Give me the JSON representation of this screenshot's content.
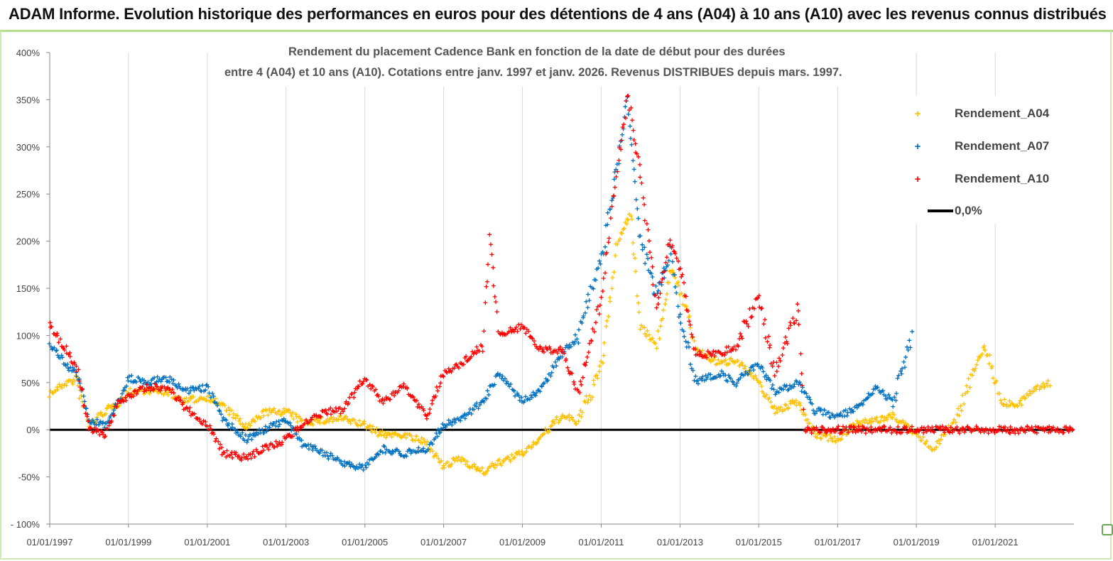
{
  "banner": {
    "text": "ADAM Informe. Evolution historique des performances en euros pour des détentions de 4 ans (A04) à 10 ans (A10) avec les revenus connus distribués"
  },
  "colors": {
    "A04": "#ffc000",
    "A07": "#0070c0",
    "A10": "#ff0000",
    "zero": "#000000",
    "grid": "#d9d9d9",
    "banner_border": "#b6dd8c"
  },
  "chart_data": {
    "type": "scatter",
    "title_line1": "Rendement du placement Cadence Bank en fonction de la date de début pour des durées",
    "title_line2": "entre 4 (A04) et 10 ans (A10).  Cotations entre janv. 1997 et janv. 2026. Revenus DISTRIBUES depuis mars. 1997.",
    "xlim": [
      "1997-01-01",
      "2023-01-01"
    ],
    "ylim": [
      -100,
      400
    ],
    "y_unit": "%",
    "y_ticks": [
      "400%",
      "350%",
      "300%",
      "250%",
      "200%",
      "150%",
      "100%",
      "50%",
      "0%",
      "-50%",
      "- 100%"
    ],
    "x_ticks": [
      "01/01/1997",
      "01/01/1999",
      "01/01/2001",
      "01/01/2003",
      "01/01/2005",
      "01/01/2007",
      "01/01/2009",
      "01/01/2011",
      "01/01/2013",
      "01/01/2015",
      "01/01/2017",
      "01/01/2019",
      "01/01/2021"
    ],
    "grid": "vertical",
    "legend_position": "top-right",
    "legend": [
      "Rendement_A04",
      "Rendement_A07",
      "Rendement_A10",
      "0,0%"
    ],
    "series": [
      {
        "name": "Rendement_A04",
        "marker": "+",
        "points": [
          [
            "1997-01-01",
            38
          ],
          [
            "1997-06-01",
            50
          ],
          [
            "1997-09-01",
            52
          ],
          [
            "1998-01-01",
            5
          ],
          [
            "1998-06-01",
            20
          ],
          [
            "1998-10-01",
            28
          ],
          [
            "1999-01-01",
            40
          ],
          [
            "1999-06-01",
            42
          ],
          [
            "2000-01-01",
            40
          ],
          [
            "2000-06-01",
            30
          ],
          [
            "2001-01-01",
            35
          ],
          [
            "2001-06-01",
            25
          ],
          [
            "2002-01-01",
            2
          ],
          [
            "2002-06-01",
            18
          ],
          [
            "2003-01-01",
            20
          ],
          [
            "2003-06-01",
            8
          ],
          [
            "2004-01-01",
            10
          ],
          [
            "2004-06-01",
            12
          ],
          [
            "2005-01-01",
            5
          ],
          [
            "2005-06-01",
            -5
          ],
          [
            "2006-01-01",
            -5
          ],
          [
            "2006-08-01",
            -15
          ],
          [
            "2007-01-01",
            -40
          ],
          [
            "2007-06-01",
            -30
          ],
          [
            "2008-01-01",
            -45
          ],
          [
            "2008-06-01",
            -35
          ],
          [
            "2009-01-01",
            -25
          ],
          [
            "2009-06-01",
            -10
          ],
          [
            "2010-01-01",
            15
          ],
          [
            "2010-06-01",
            8
          ],
          [
            "2011-01-01",
            65
          ],
          [
            "2011-06-01",
            200
          ],
          [
            "2011-10-01",
            230
          ],
          [
            "2012-01-01",
            110
          ],
          [
            "2012-06-01",
            90
          ],
          [
            "2012-10-01",
            170
          ],
          [
            "2013-01-01",
            150
          ],
          [
            "2013-06-01",
            85
          ],
          [
            "2014-01-01",
            70
          ],
          [
            "2014-06-01",
            75
          ],
          [
            "2015-01-01",
            50
          ],
          [
            "2015-06-01",
            20
          ],
          [
            "2016-01-01",
            30
          ],
          [
            "2016-06-01",
            -5
          ],
          [
            "2017-01-01",
            -10
          ],
          [
            "2017-06-01",
            5
          ],
          [
            "2018-01-01",
            10
          ],
          [
            "2018-06-01",
            15
          ],
          [
            "2019-01-01",
            -5
          ],
          [
            "2019-06-01",
            -20
          ],
          [
            "2020-01-01",
            10
          ],
          [
            "2020-06-01",
            60
          ],
          [
            "2020-10-01",
            90
          ],
          [
            "2021-03-01",
            30
          ],
          [
            "2021-08-01",
            25
          ],
          [
            "2022-01-01",
            45
          ],
          [
            "2022-06-01",
            50
          ]
        ]
      },
      {
        "name": "Rendement_A07",
        "marker": "+",
        "points": [
          [
            "1997-01-01",
            90
          ],
          [
            "1997-06-01",
            70
          ],
          [
            "1997-10-01",
            55
          ],
          [
            "1998-01-01",
            10
          ],
          [
            "1998-06-01",
            5
          ],
          [
            "1998-10-01",
            30
          ],
          [
            "1999-01-01",
            55
          ],
          [
            "1999-06-01",
            50
          ],
          [
            "2000-01-01",
            55
          ],
          [
            "2000-06-01",
            40
          ],
          [
            "2001-01-01",
            45
          ],
          [
            "2001-06-01",
            10
          ],
          [
            "2002-01-01",
            -10
          ],
          [
            "2002-06-01",
            0
          ],
          [
            "2003-01-01",
            10
          ],
          [
            "2003-06-01",
            -15
          ],
          [
            "2004-01-01",
            -25
          ],
          [
            "2004-06-01",
            -35
          ],
          [
            "2005-01-01",
            -40
          ],
          [
            "2005-06-01",
            -20
          ],
          [
            "2006-01-01",
            -25
          ],
          [
            "2006-08-01",
            -20
          ],
          [
            "2007-01-01",
            5
          ],
          [
            "2007-06-01",
            10
          ],
          [
            "2008-01-01",
            30
          ],
          [
            "2008-06-01",
            60
          ],
          [
            "2009-01-01",
            30
          ],
          [
            "2009-06-01",
            40
          ],
          [
            "2010-01-01",
            80
          ],
          [
            "2010-06-01",
            100
          ],
          [
            "2011-01-01",
            180
          ],
          [
            "2011-06-01",
            280
          ],
          [
            "2011-09-01",
            350
          ],
          [
            "2012-01-01",
            200
          ],
          [
            "2012-06-01",
            140
          ],
          [
            "2012-10-01",
            190
          ],
          [
            "2013-01-01",
            120
          ],
          [
            "2013-06-01",
            50
          ],
          [
            "2014-01-01",
            60
          ],
          [
            "2014-06-01",
            50
          ],
          [
            "2015-01-01",
            70
          ],
          [
            "2015-06-01",
            40
          ],
          [
            "2016-01-01",
            50
          ],
          [
            "2016-06-01",
            20
          ],
          [
            "2017-01-01",
            15
          ],
          [
            "2017-06-01",
            20
          ],
          [
            "2018-01-01",
            45
          ],
          [
            "2018-06-01",
            30
          ],
          [
            "2018-12-01",
            100
          ]
        ]
      },
      {
        "name": "Rendement_A10",
        "marker": "+",
        "points": [
          [
            "1997-01-01",
            110
          ],
          [
            "1997-06-01",
            85
          ],
          [
            "1997-10-01",
            60
          ],
          [
            "1998-01-01",
            0
          ],
          [
            "1998-06-01",
            -5
          ],
          [
            "1998-10-01",
            30
          ],
          [
            "1999-01-01",
            35
          ],
          [
            "1999-06-01",
            45
          ],
          [
            "2000-01-01",
            45
          ],
          [
            "2000-06-01",
            25
          ],
          [
            "2001-01-01",
            5
          ],
          [
            "2001-06-01",
            -25
          ],
          [
            "2002-01-01",
            -30
          ],
          [
            "2002-06-01",
            -20
          ],
          [
            "2003-01-01",
            -10
          ],
          [
            "2003-06-01",
            5
          ],
          [
            "2004-01-01",
            20
          ],
          [
            "2004-06-01",
            20
          ],
          [
            "2005-01-01",
            55
          ],
          [
            "2005-06-01",
            30
          ],
          [
            "2006-01-01",
            45
          ],
          [
            "2006-08-01",
            15
          ],
          [
            "2007-01-01",
            60
          ],
          [
            "2007-06-01",
            70
          ],
          [
            "2008-01-01",
            90
          ],
          [
            "2008-03-01",
            200
          ],
          [
            "2008-06-01",
            100
          ],
          [
            "2009-01-01",
            110
          ],
          [
            "2009-06-01",
            85
          ],
          [
            "2010-01-01",
            85
          ],
          [
            "2010-06-01",
            40
          ],
          [
            "2011-01-01",
            140
          ],
          [
            "2011-06-01",
            280
          ],
          [
            "2011-09-01",
            355
          ],
          [
            "2012-01-01",
            270
          ],
          [
            "2012-06-01",
            130
          ],
          [
            "2012-10-01",
            200
          ],
          [
            "2013-01-01",
            170
          ],
          [
            "2013-06-01",
            80
          ],
          [
            "2014-01-01",
            80
          ],
          [
            "2014-06-01",
            90
          ],
          [
            "2015-01-01",
            140
          ],
          [
            "2015-06-01",
            60
          ],
          [
            "2016-01-01",
            130
          ],
          [
            "2016-03-01",
            0
          ],
          [
            "2017-01-01",
            0
          ],
          [
            "2018-01-01",
            0
          ],
          [
            "2019-01-01",
            0
          ],
          [
            "2020-01-01",
            0
          ],
          [
            "2021-01-01",
            0
          ],
          [
            "2022-01-01",
            0
          ],
          [
            "2023-01-01",
            0
          ]
        ]
      },
      {
        "name": "0,0%",
        "type": "line",
        "value": 0
      }
    ]
  }
}
